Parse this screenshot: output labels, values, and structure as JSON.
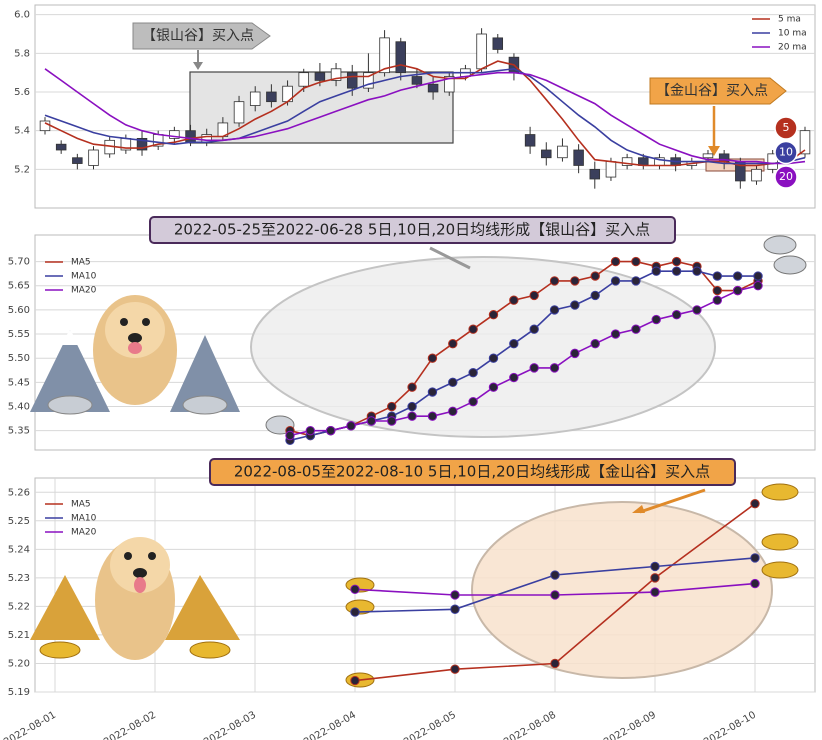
{
  "chart_data": [
    {
      "type": "candlestick",
      "open": [
        5.4,
        5.33,
        5.26,
        5.22,
        5.28,
        5.3,
        5.36,
        5.32,
        5.36,
        5.4,
        5.34,
        5.37,
        5.44,
        5.53,
        5.6,
        5.55,
        5.63,
        5.7,
        5.66,
        5.7,
        5.62,
        5.7,
        5.86,
        5.68,
        5.64,
        5.6,
        5.68,
        5.72,
        5.88,
        5.78,
        5.38,
        5.3,
        5.26,
        5.3,
        5.2,
        5.16,
        5.22,
        5.26,
        5.22,
        5.26,
        5.22,
        5.26,
        5.28,
        5.24,
        5.14,
        5.2,
        5.28,
        5.28
      ],
      "high": [
        5.47,
        5.35,
        5.28,
        5.32,
        5.37,
        5.38,
        5.4,
        5.4,
        5.42,
        5.43,
        5.41,
        5.47,
        5.58,
        5.63,
        5.64,
        5.66,
        5.72,
        5.75,
        5.75,
        5.74,
        5.8,
        5.92,
        5.88,
        5.72,
        5.68,
        5.7,
        5.74,
        5.93,
        5.9,
        5.8,
        5.42,
        5.34,
        5.36,
        5.33,
        5.24,
        5.26,
        5.28,
        5.28,
        5.28,
        5.28,
        5.26,
        5.3,
        5.3,
        5.26,
        5.22,
        5.3,
        5.32,
        5.42
      ],
      "low": [
        5.38,
        5.28,
        5.2,
        5.2,
        5.26,
        5.28,
        5.27,
        5.3,
        5.33,
        5.32,
        5.32,
        5.35,
        5.42,
        5.5,
        5.52,
        5.53,
        5.6,
        5.63,
        5.63,
        5.58,
        5.6,
        5.68,
        5.66,
        5.62,
        5.56,
        5.58,
        5.66,
        5.7,
        5.8,
        5.66,
        5.28,
        5.22,
        5.24,
        5.18,
        5.1,
        5.14,
        5.2,
        5.2,
        5.2,
        5.19,
        5.2,
        5.24,
        5.2,
        5.1,
        5.12,
        5.18,
        5.24,
        5.26
      ],
      "close": [
        5.45,
        5.3,
        5.23,
        5.3,
        5.35,
        5.36,
        5.3,
        5.38,
        5.4,
        5.34,
        5.38,
        5.44,
        5.55,
        5.6,
        5.55,
        5.63,
        5.7,
        5.66,
        5.72,
        5.62,
        5.7,
        5.88,
        5.7,
        5.64,
        5.6,
        5.68,
        5.72,
        5.9,
        5.82,
        5.7,
        5.32,
        5.26,
        5.32,
        5.22,
        5.15,
        5.24,
        5.26,
        5.22,
        5.26,
        5.22,
        5.24,
        5.28,
        5.24,
        5.14,
        5.2,
        5.28,
        5.3,
        5.4
      ],
      "up_color": "#ffffff",
      "down_color": "#3b3f5c",
      "series": [
        {
          "name": "5 ma",
          "color": "#b5301f",
          "values": [
            5.44,
            5.4,
            5.36,
            5.33,
            5.32,
            5.31,
            5.31,
            5.33,
            5.34,
            5.36,
            5.37,
            5.37,
            5.41,
            5.46,
            5.5,
            5.55,
            5.62,
            5.65,
            5.67,
            5.68,
            5.68,
            5.72,
            5.74,
            5.72,
            5.68,
            5.67,
            5.67,
            5.72,
            5.76,
            5.74,
            5.66,
            5.56,
            5.46,
            5.35,
            5.25,
            5.24,
            5.23,
            5.22,
            5.22,
            5.22,
            5.23,
            5.24,
            5.24,
            5.22,
            5.22,
            5.23,
            5.24,
            5.3
          ]
        },
        {
          "name": "10 ma",
          "color": "#3a3fa0",
          "values": [
            5.48,
            5.45,
            5.42,
            5.39,
            5.37,
            5.36,
            5.35,
            5.34,
            5.33,
            5.34,
            5.34,
            5.35,
            5.36,
            5.39,
            5.42,
            5.45,
            5.5,
            5.55,
            5.58,
            5.61,
            5.64,
            5.66,
            5.68,
            5.69,
            5.7,
            5.7,
            5.7,
            5.7,
            5.71,
            5.72,
            5.68,
            5.62,
            5.55,
            5.48,
            5.42,
            5.35,
            5.3,
            5.27,
            5.25,
            5.24,
            5.24,
            5.24,
            5.23,
            5.23,
            5.23,
            5.23,
            5.24,
            5.26
          ]
        },
        {
          "name": "20 ma",
          "color": "#8a10c0",
          "values": [
            5.72,
            5.66,
            5.6,
            5.54,
            5.48,
            5.43,
            5.4,
            5.38,
            5.37,
            5.36,
            5.35,
            5.35,
            5.36,
            5.37,
            5.39,
            5.41,
            5.44,
            5.47,
            5.5,
            5.53,
            5.56,
            5.58,
            5.61,
            5.63,
            5.65,
            5.67,
            5.68,
            5.69,
            5.7,
            5.7,
            5.69,
            5.66,
            5.62,
            5.58,
            5.54,
            5.48,
            5.43,
            5.38,
            5.33,
            5.3,
            5.27,
            5.25,
            5.25,
            5.24,
            5.24,
            5.23,
            5.23,
            5.24
          ]
        }
      ],
      "ylim": [
        5.0,
        6.05
      ],
      "yticks": [
        {
          "value": 5.2,
          "label": "5.2"
        },
        {
          "value": 5.4,
          "label": "5.4"
        },
        {
          "value": 5.6,
          "label": "5.6"
        },
        {
          "value": 5.8,
          "label": "5.8"
        },
        {
          "value": 6.0,
          "label": "6.0"
        }
      ],
      "grid": true,
      "legend": "upper right",
      "annotations": [
        "【银山谷】买入点",
        "【金山谷】买入点"
      ],
      "end_badges": [
        "5",
        "10",
        "20"
      ]
    },
    {
      "type": "line",
      "title": "2022-05-25至2022-06-28 5日,10日,20日均线形成【银山谷】买入点",
      "categories": [
        null,
        null,
        null,
        null,
        null,
        null,
        null,
        null,
        null,
        null,
        null,
        null,
        null,
        null,
        null,
        null,
        null,
        null,
        null,
        null,
        null,
        null,
        null,
        null
      ],
      "series": [
        {
          "name": "MA5",
          "color": "#b5301f",
          "values": [
            5.35,
            5.34,
            5.35,
            5.36,
            5.38,
            5.4,
            5.44,
            5.5,
            5.53,
            5.56,
            5.59,
            5.62,
            5.63,
            5.66,
            5.66,
            5.67,
            5.7,
            5.7,
            5.69,
            5.7,
            5.69,
            5.64,
            5.64,
            5.66
          ]
        },
        {
          "name": "MA10",
          "color": "#3a3fa0",
          "values": [
            5.33,
            5.34,
            5.35,
            5.36,
            5.37,
            5.38,
            5.4,
            5.43,
            5.45,
            5.47,
            5.5,
            5.53,
            5.56,
            5.6,
            5.61,
            5.63,
            5.66,
            5.66,
            5.68,
            5.68,
            5.68,
            5.67,
            5.67,
            5.67
          ]
        },
        {
          "name": "MA20",
          "color": "#8a10c0",
          "values": [
            5.34,
            5.35,
            5.35,
            5.36,
            5.37,
            5.37,
            5.38,
            5.38,
            5.39,
            5.41,
            5.44,
            5.46,
            5.48,
            5.48,
            5.51,
            5.53,
            5.55,
            5.56,
            5.58,
            5.59,
            5.6,
            5.62,
            5.64,
            5.65
          ]
        }
      ],
      "ylim": [
        5.31,
        5.755
      ],
      "yticks": [
        5.35,
        {
          "value": 5.4,
          "label": "5.40"
        },
        5.45,
        {
          "value": 5.5,
          "label": "5.50"
        },
        5.55,
        {
          "value": 5.6,
          "label": "5.60"
        },
        5.65,
        {
          "value": 5.7,
          "label": "5.70"
        }
      ],
      "grid": true,
      "legend": "upper left"
    },
    {
      "type": "line",
      "title": "2022-08-05至2022-08-10 5日,10日,20日均线形成【金山谷】买入点",
      "categories": [
        "2022-08-01",
        "2022-08-02",
        "2022-08-03",
        "2022-08-04",
        "2022-08-05",
        "2022-08-08",
        "2022-08-09",
        "2022-08-10"
      ],
      "series": [
        {
          "name": "MA5",
          "color": "#b5301f",
          "values": [
            null,
            null,
            null,
            5.194,
            5.198,
            5.2,
            5.23,
            5.256
          ]
        },
        {
          "name": "MA10",
          "color": "#3a3fa0",
          "values": [
            null,
            null,
            null,
            5.218,
            5.219,
            5.231,
            5.234,
            5.237
          ]
        },
        {
          "name": "MA20",
          "color": "#8a10c0",
          "values": [
            null,
            null,
            null,
            5.226,
            5.224,
            5.224,
            5.225,
            5.228
          ]
        }
      ],
      "ylim": [
        5.19,
        5.265
      ],
      "yticks": [
        5.19,
        {
          "value": 5.2,
          "label": "5.20"
        },
        5.21,
        5.22,
        5.23,
        5.24,
        5.25,
        5.26
      ],
      "grid": true,
      "legend": "upper left"
    }
  ]
}
